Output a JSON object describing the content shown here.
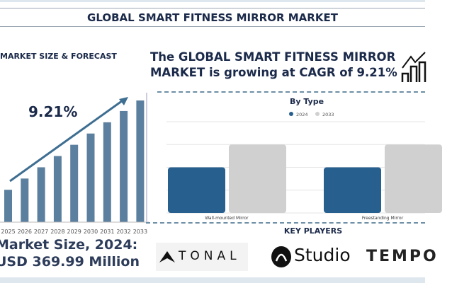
{
  "header": {
    "title": "GLOBAL SMART FITNESS MIRROR MARKET"
  },
  "left": {
    "section_title": "MARKET SIZE & FORECAST",
    "cagr_label": "9.21%",
    "market_size_line1": "Market Size, 2024:",
    "market_size_line2": "USD 369.99 Million"
  },
  "headline": {
    "line1": "The GLOBAL SMART FITNESS MIRROR",
    "line2": "MARKET is growing at CAGR of 9.21%",
    "icon": "growth-chart-icon"
  },
  "key_players": {
    "title": "KEY PLAYERS",
    "logos": [
      "TONAL",
      "Studio",
      "TEMPO"
    ]
  },
  "colors": {
    "forecast_bar": "#5b7f9e",
    "series_2024": "#275f8e",
    "series_2033": "#d0d0d0",
    "text": "#1b2a4a"
  },
  "chart_data": [
    {
      "type": "bar",
      "title": "",
      "categories": [
        "2025",
        "2026",
        "2027",
        "2028",
        "2029",
        "2030",
        "2031",
        "2032",
        "2033"
      ],
      "values": [
        46,
        62,
        78,
        94,
        110,
        126,
        142,
        158,
        173
      ],
      "grid": false,
      "trend_arrow": true
    },
    {
      "type": "bar",
      "title": "By Type",
      "categories": [
        "Wall-mounted Mirror",
        "Freestanding Mirror"
      ],
      "series": [
        {
          "name": "2024",
          "values": [
            2,
            2
          ]
        },
        {
          "name": "2033",
          "values": [
            3,
            3
          ]
        }
      ],
      "ylim": [
        0,
        4
      ],
      "grid": true,
      "legend": "top-center"
    }
  ]
}
